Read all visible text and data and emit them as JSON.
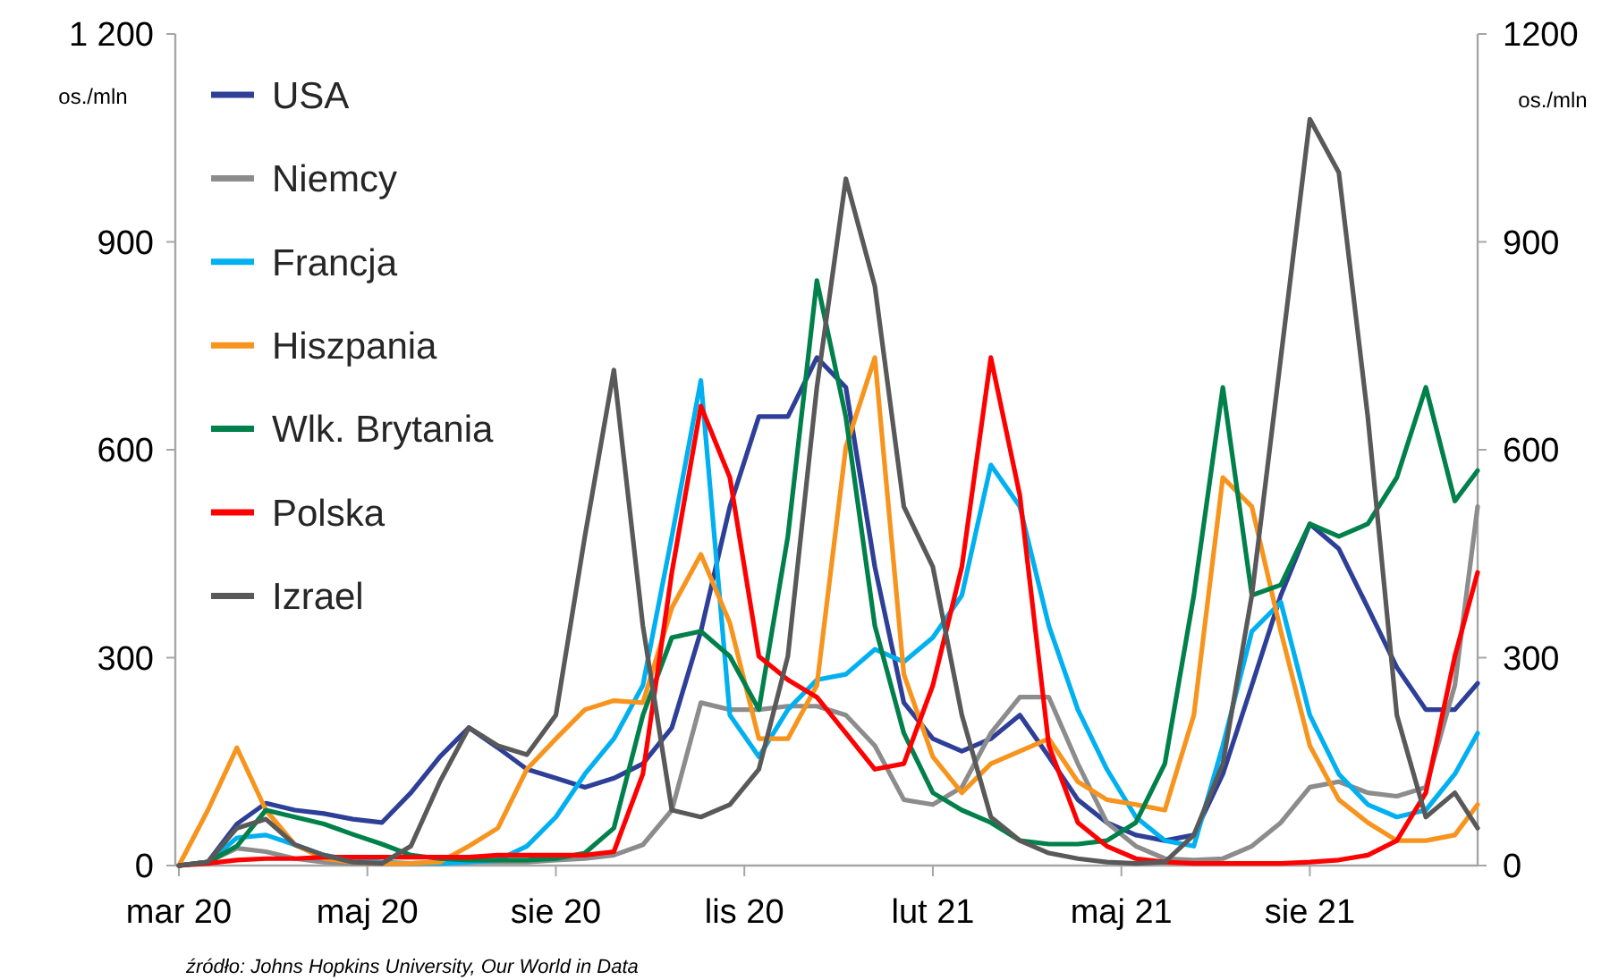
{
  "chart_data": {
    "type": "line",
    "x": [
      "2020-03-01",
      "2020-03-15",
      "2020-03-29",
      "2020-04-12",
      "2020-04-26",
      "2020-05-10",
      "2020-05-24",
      "2020-06-07",
      "2020-06-21",
      "2020-07-05",
      "2020-07-19",
      "2020-08-02",
      "2020-08-16",
      "2020-08-30",
      "2020-09-13",
      "2020-09-27",
      "2020-10-11",
      "2020-10-25",
      "2020-11-08",
      "2020-11-22",
      "2020-12-06",
      "2020-12-20",
      "2021-01-03",
      "2021-01-17",
      "2021-01-31",
      "2021-02-14",
      "2021-02-28",
      "2021-03-14",
      "2021-03-28",
      "2021-04-11",
      "2021-04-25",
      "2021-05-09",
      "2021-05-23",
      "2021-06-06",
      "2021-06-20",
      "2021-07-04",
      "2021-07-18",
      "2021-08-01",
      "2021-08-15",
      "2021-08-29",
      "2021-09-12",
      "2021-09-26",
      "2021-10-10",
      "2021-10-24",
      "2021-11-07",
      "2021-11-18"
    ],
    "series": [
      {
        "name": "USA",
        "color": "#2e3f98",
        "values": [
          0,
          5,
          60,
          90,
          80,
          75,
          67,
          62,
          105,
          157,
          199,
          170,
          139,
          126,
          113,
          126,
          147,
          199,
          338,
          518,
          648,
          648,
          733,
          690,
          431,
          235,
          183,
          165,
          183,
          217,
          157,
          95,
          62,
          44,
          36,
          44,
          132,
          260,
          390,
          493,
          457,
          372,
          286,
          225,
          225,
          263
        ]
      },
      {
        "name": "Niemcy",
        "color": "#8c8c8c",
        "values": [
          0,
          5,
          25,
          20,
          10,
          5,
          3,
          3,
          3,
          5,
          5,
          5,
          5,
          8,
          10,
          15,
          30,
          80,
          235,
          225,
          225,
          230,
          230,
          217,
          173,
          95,
          88,
          113,
          191,
          243,
          243,
          147,
          62,
          28,
          10,
          8,
          10,
          28,
          62,
          113,
          121,
          105,
          100,
          113,
          260,
          518
        ]
      },
      {
        "name": "Francja",
        "color": "#00b0f0",
        "values": [
          0,
          5,
          40,
          44,
          30,
          15,
          8,
          5,
          3,
          3,
          5,
          8,
          28,
          70,
          132,
          183,
          260,
          475,
          700,
          217,
          157,
          225,
          268,
          276,
          312,
          294,
          329,
          390,
          578,
          518,
          346,
          225,
          139,
          70,
          36,
          28,
          173,
          338,
          380,
          217,
          132,
          88,
          70,
          80,
          132,
          191
        ]
      },
      {
        "name": "Hiszpania",
        "color": "#f7941d",
        "values": [
          0,
          80,
          170,
          80,
          30,
          10,
          5,
          3,
          3,
          5,
          28,
          54,
          139,
          183,
          225,
          238,
          235,
          372,
          449,
          350,
          183,
          183,
          260,
          604,
          733,
          276,
          157,
          105,
          147,
          165,
          183,
          121,
          95,
          88,
          80,
          217,
          560,
          518,
          338,
          173,
          95,
          62,
          36,
          36,
          44,
          88
        ]
      },
      {
        "name": "Wlk. Brytania",
        "color": "#00804a",
        "values": [
          0,
          5,
          28,
          80,
          70,
          60,
          45,
          31,
          15,
          10,
          8,
          8,
          8,
          10,
          18,
          54,
          217,
          329,
          338,
          302,
          225,
          475,
          844,
          647,
          346,
          191,
          105,
          80,
          62,
          36,
          31,
          31,
          36,
          62,
          147,
          390,
          690,
          390,
          405,
          493,
          475,
          493,
          560,
          690,
          526,
          570
        ]
      },
      {
        "name": "Polska",
        "color": "#ff0000",
        "values": [
          0,
          3,
          8,
          10,
          10,
          12,
          12,
          12,
          12,
          12,
          12,
          15,
          15,
          15,
          15,
          20,
          132,
          423,
          663,
          560,
          302,
          268,
          243,
          191,
          139,
          147,
          260,
          431,
          733,
          534,
          173,
          62,
          28,
          10,
          5,
          3,
          3,
          3,
          3,
          5,
          8,
          15,
          36,
          105,
          302,
          423
        ]
      },
      {
        "name": "Izrael",
        "color": "#595959",
        "values": [
          0,
          5,
          54,
          67,
          30,
          15,
          5,
          3,
          28,
          121,
          199,
          173,
          160,
          217,
          475,
          715,
          346,
          80,
          70,
          88,
          139,
          302,
          690,
          991,
          836,
          518,
          431,
          217,
          70,
          36,
          18,
          10,
          5,
          3,
          5,
          44,
          147,
          390,
          733,
          1077,
          1000,
          647,
          217,
          70,
          105,
          54
        ]
      }
    ],
    "xlim": [
      "2020-03-01",
      "2021-11-18"
    ],
    "xticks": [
      {
        "value": "2020-03-01",
        "label": "mar 20"
      },
      {
        "value": "2020-05-31",
        "label": "maj 20"
      },
      {
        "value": "2020-08-30",
        "label": "sie 20"
      },
      {
        "value": "2020-11-29",
        "label": "lis 20"
      },
      {
        "value": "2021-02-28",
        "label": "lut 21"
      },
      {
        "value": "2021-05-30",
        "label": "maj 21"
      },
      {
        "value": "2021-08-29",
        "label": "sie 21"
      }
    ],
    "ylim": [
      0,
      1200
    ],
    "yticks": [
      0,
      300,
      600,
      900,
      {
        "value": 1200,
        "label": "1 200"
      }
    ],
    "y2lim": [
      0,
      1200
    ],
    "y2ticks": [
      0,
      300,
      600,
      900,
      1200
    ],
    "ylabel": "os./mln",
    "y2label": "os./mln",
    "annotations": [
      "źródło: Johns Hopkins University, Our World in Data"
    ],
    "legend": "top left",
    "grid": false,
    "marker": "none",
    "line_style": "solid"
  }
}
